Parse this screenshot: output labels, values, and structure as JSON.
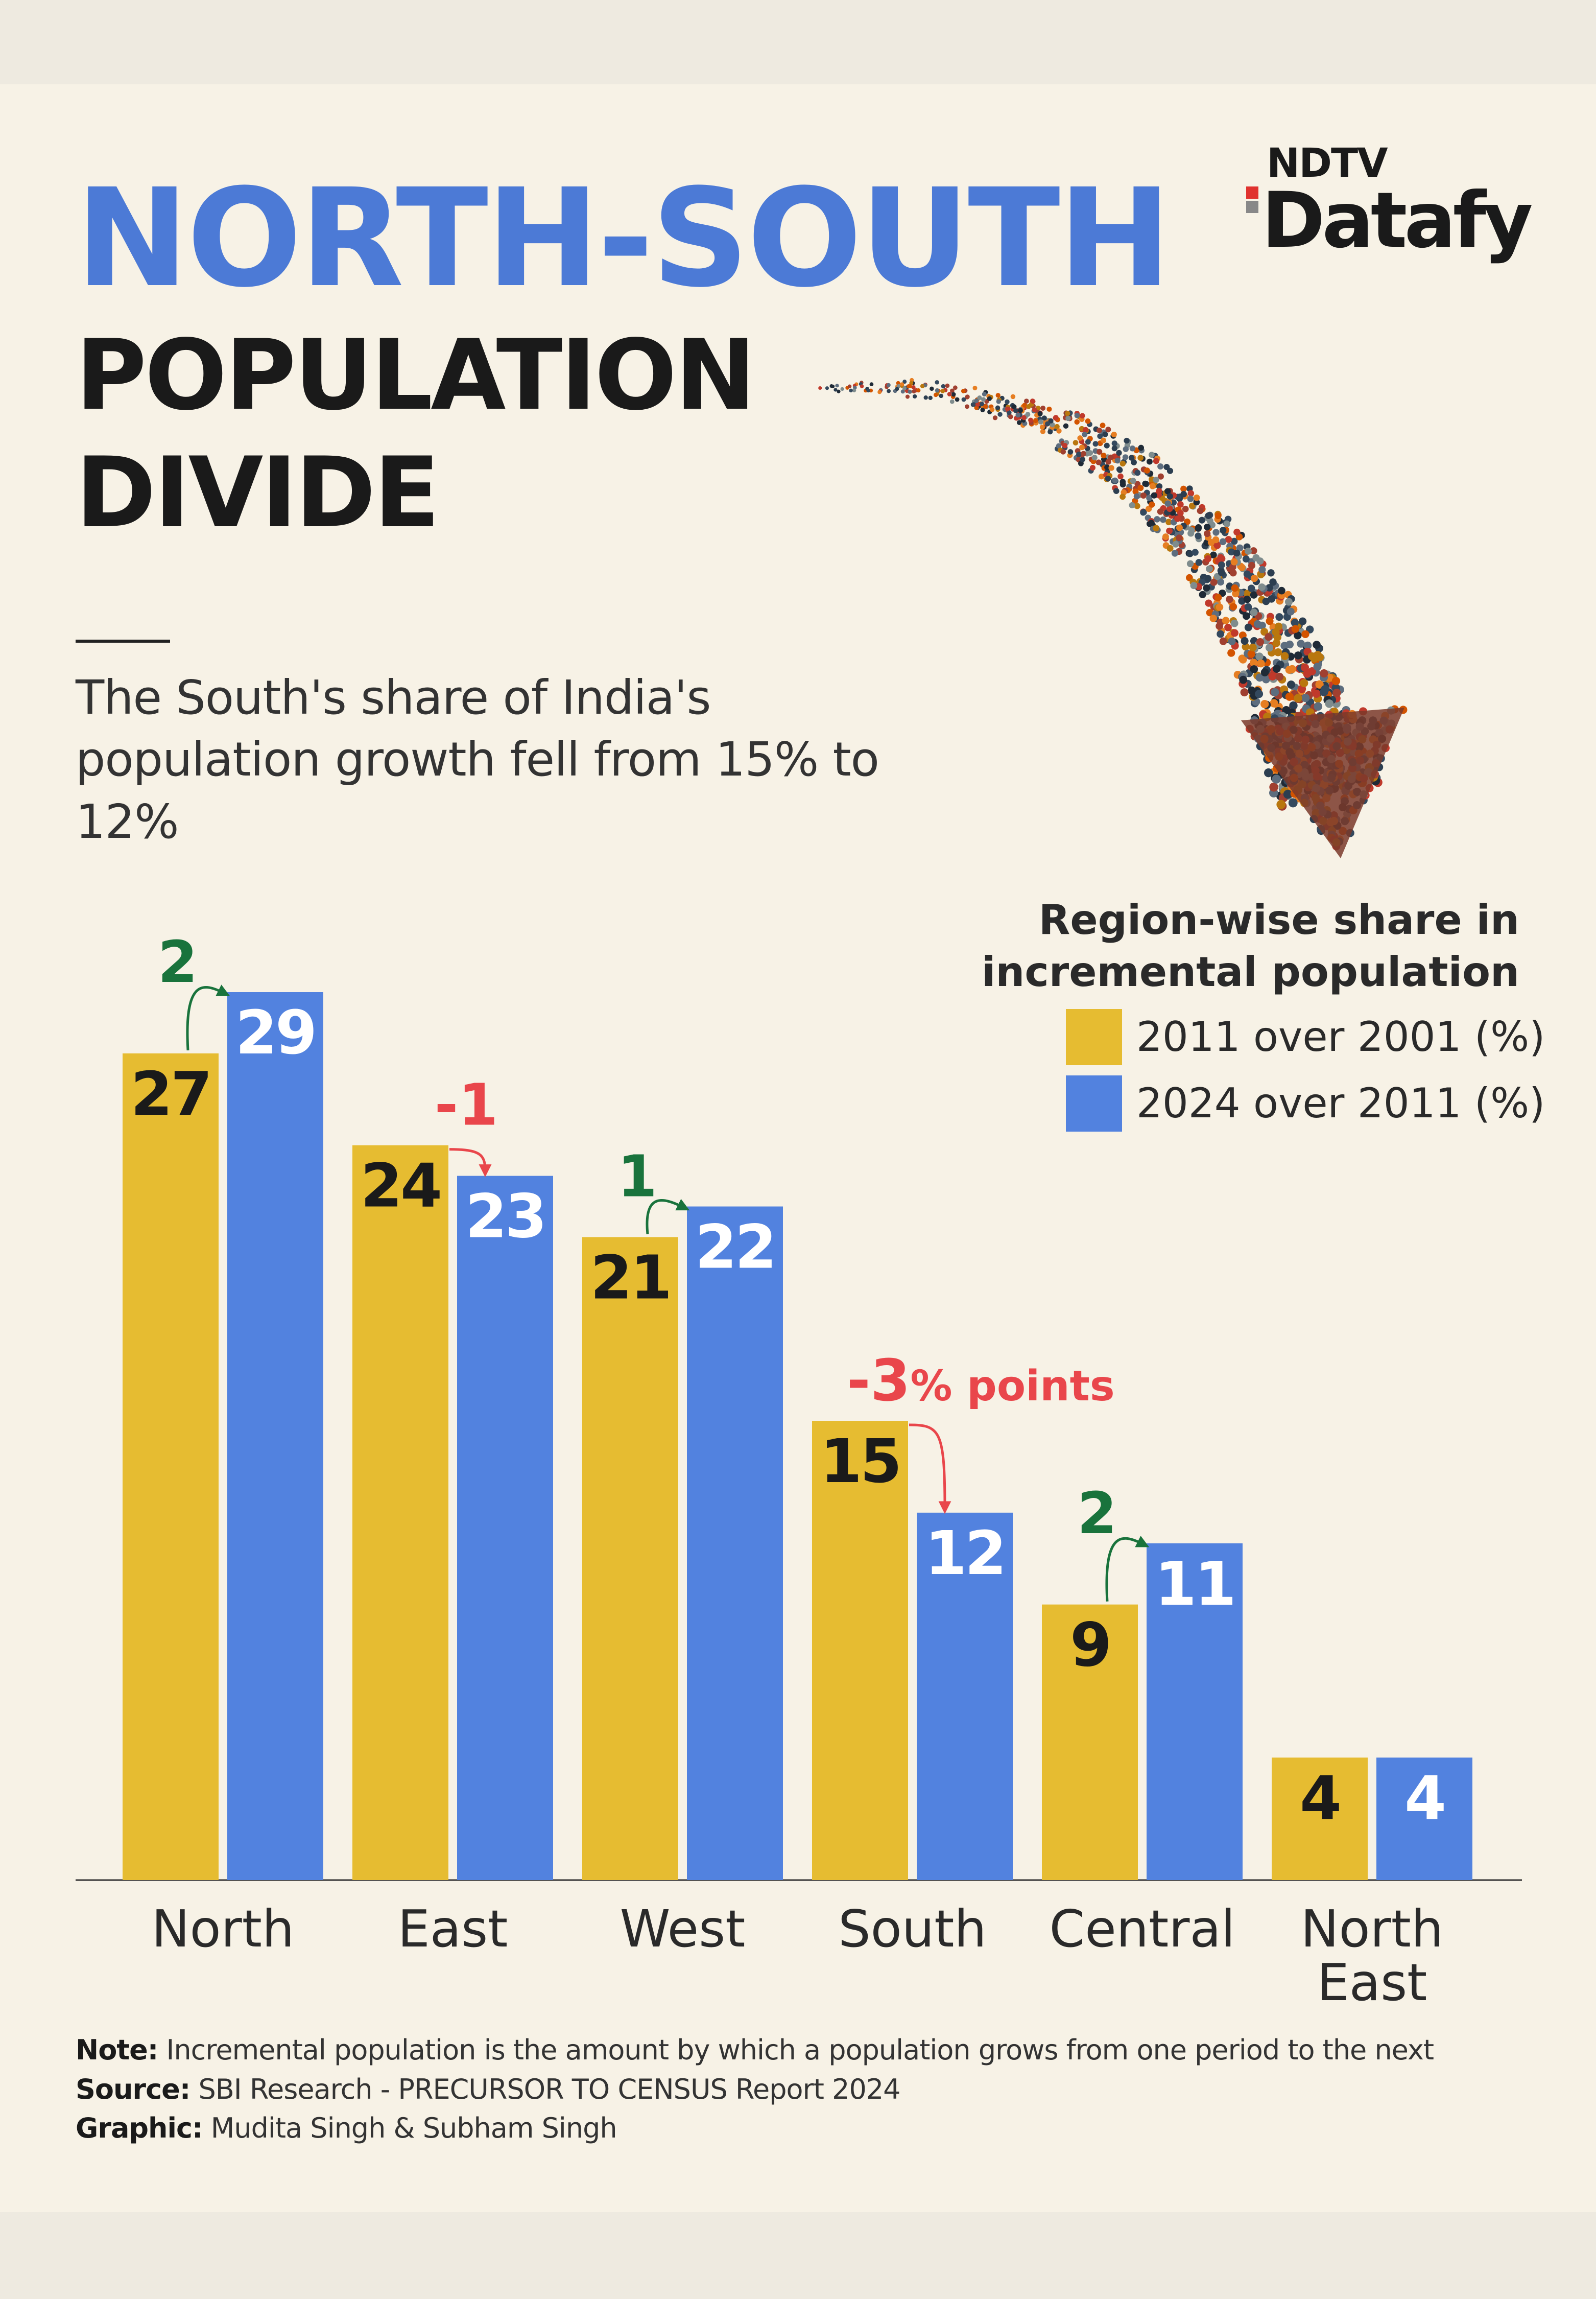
{
  "title": {
    "line1": "NORTH-SOUTH",
    "line2": "POPULATION",
    "line3": "DIVIDE"
  },
  "subtitle": "The South's share of India's population growth fell from 15% to 12%",
  "brand": {
    "top": "NDTV",
    "bottom": "Datafy"
  },
  "colors": {
    "series_2011": "#e6bc31",
    "series_2024": "#5282df",
    "increase": "#19733c",
    "decrease": "#e9464b",
    "text": "#1a1a1a",
    "background": "#f7f2e6"
  },
  "legend": {
    "title": "Region-wise share in incremental population",
    "items": [
      "2011 over 2001 (%)",
      "2024 over 2011 (%)"
    ]
  },
  "chart_data": {
    "type": "bar",
    "categories": [
      [
        "North"
      ],
      [
        "East"
      ],
      [
        "West"
      ],
      [
        "South"
      ],
      [
        "Central"
      ],
      [
        "North",
        "East"
      ]
    ],
    "series": [
      {
        "name": "2011 over 2001 (%)",
        "values": [
          27,
          24,
          21,
          15,
          9,
          4
        ]
      },
      {
        "name": "2024 over 2011 (%)",
        "values": [
          29,
          23,
          22,
          12,
          11,
          4
        ]
      }
    ],
    "changes": [
      "2",
      "-1",
      "1",
      "-3",
      "2",
      null
    ],
    "change_suffix": [
      "",
      "",
      "",
      "% points",
      "",
      ""
    ],
    "ylim": [
      0,
      29
    ],
    "grid": false,
    "legend_position": "top-right",
    "data_labels": true
  },
  "footnotes": {
    "note_label": "Note:",
    "note": "Incremental population is the amount by which a population grows from one period to the next",
    "source_label": "Source:",
    "source": "SBI Research - PRECURSOR TO CENSUS Report 2024",
    "graphic_label": "Graphic:",
    "graphic": "Mudita Singh & Subham Singh"
  }
}
